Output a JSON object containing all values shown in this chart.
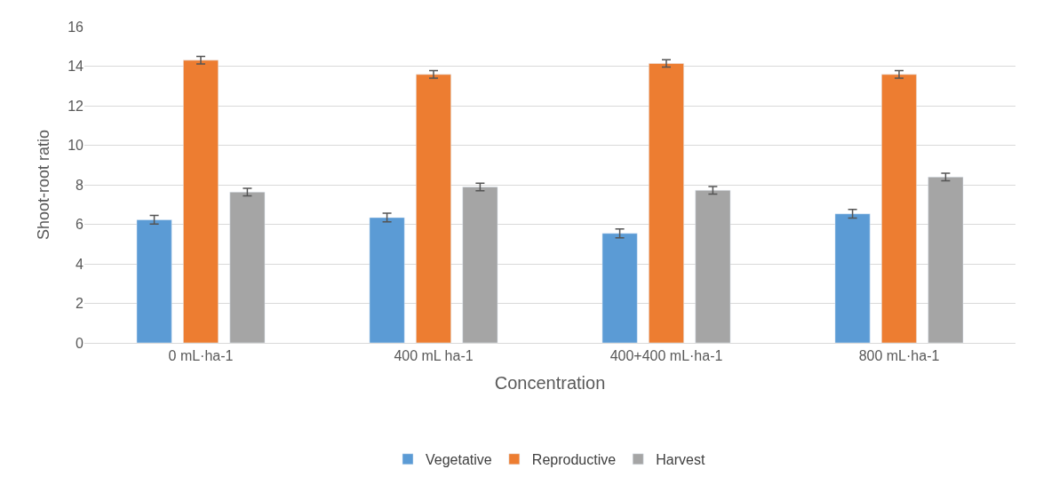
{
  "chart_data": {
    "type": "bar",
    "xlabel": "Concentration",
    "ylabel": "Shoot-root ratio",
    "categories": [
      "0 mL·ha-1",
      "400 mL ha-1",
      "400+400 mL·ha-1",
      "800 mL·ha-1"
    ],
    "series": [
      {
        "name": "Vegetative",
        "color": "#5b9bd5",
        "values": [
          6.23,
          6.34,
          5.54,
          6.53
        ],
        "errors": [
          0.22,
          0.22,
          0.22,
          0.22
        ]
      },
      {
        "name": "Reproductive",
        "color": "#ed7d31",
        "values": [
          14.3,
          13.58,
          14.14,
          13.58
        ],
        "errors": [
          0.19,
          0.19,
          0.19,
          0.19
        ]
      },
      {
        "name": "Harvest",
        "color": "#a5a5a5",
        "values": [
          7.63,
          7.89,
          7.72,
          8.39
        ],
        "errors": [
          0.19,
          0.19,
          0.19,
          0.19
        ]
      }
    ],
    "ylim": [
      0,
      16
    ],
    "yticks": [
      0,
      2,
      4,
      6,
      8,
      10,
      12,
      14,
      16
    ],
    "grid": "y",
    "legend": "bottom"
  }
}
